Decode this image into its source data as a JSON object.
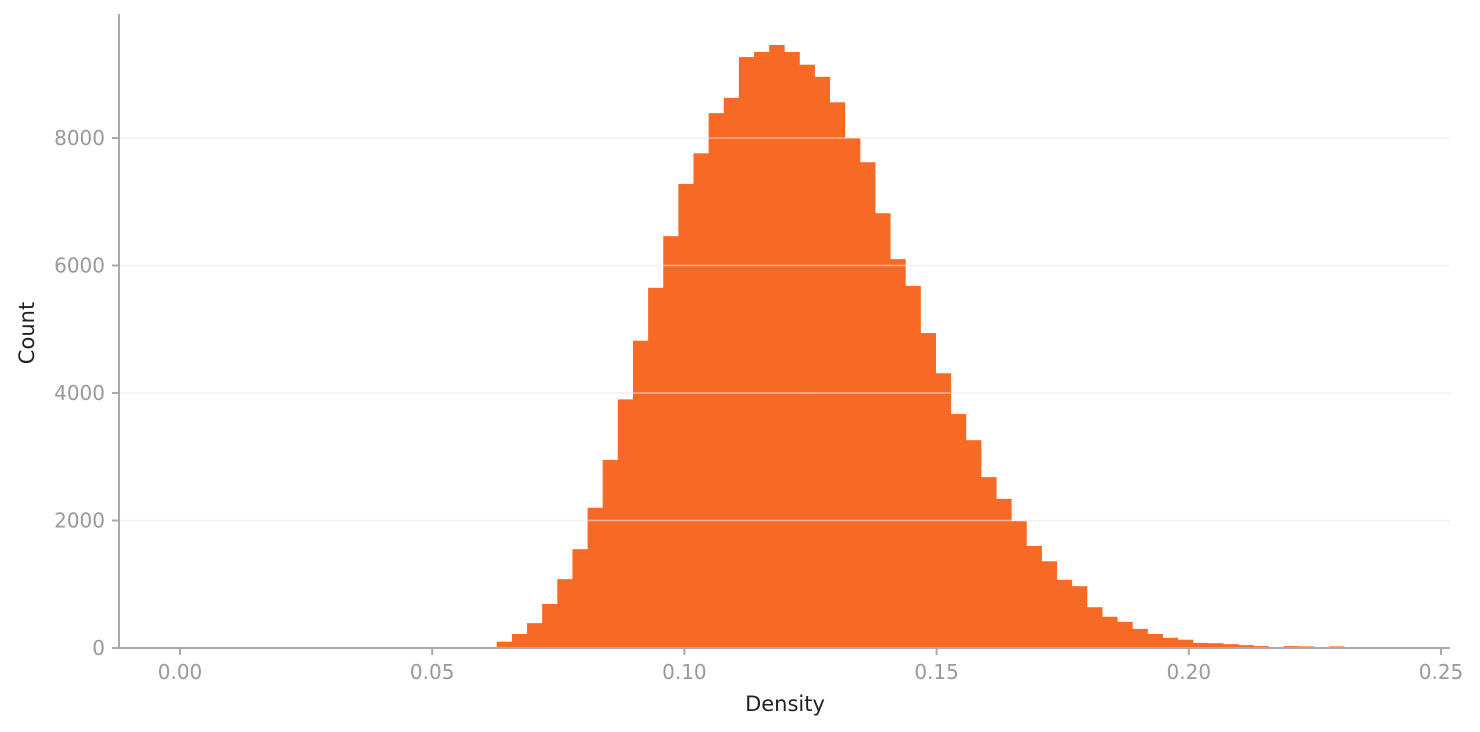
{
  "chart_data": {
    "type": "bar",
    "subtype": "histogram",
    "title": "",
    "xlabel": "Density",
    "ylabel": "Count",
    "xlim": [
      -0.012,
      0.252
    ],
    "ylim": [
      0,
      9950
    ],
    "x_ticks": [
      0.0,
      0.05,
      0.1,
      0.15,
      0.2,
      0.25
    ],
    "x_tick_labels": [
      "0.00",
      "0.05",
      "0.10",
      "0.15",
      "0.20",
      "0.25"
    ],
    "y_ticks": [
      0,
      2000,
      4000,
      6000,
      8000
    ],
    "y_tick_labels": [
      "0",
      "2000",
      "4000",
      "6000",
      "8000"
    ],
    "grid": {
      "y": true,
      "x": false,
      "color": "#f2f2f2"
    },
    "legend": null,
    "bar_color": "#f66a26",
    "bin_start": 0.0628,
    "bin_width": 0.003,
    "values": [
      100,
      220,
      390,
      690,
      1080,
      1550,
      2200,
      2950,
      3900,
      4820,
      5650,
      6460,
      7280,
      7760,
      8390,
      8630,
      9270,
      9350,
      9460,
      9350,
      9150,
      8960,
      8560,
      8000,
      7620,
      6820,
      6100,
      5680,
      4940,
      4310,
      3670,
      3260,
      2680,
      2340,
      1990,
      1600,
      1360,
      1070,
      970,
      640,
      490,
      410,
      300,
      220,
      160,
      130,
      80,
      75,
      60,
      45,
      30,
      15,
      30,
      25,
      10,
      25,
      10,
      8,
      6
    ]
  }
}
